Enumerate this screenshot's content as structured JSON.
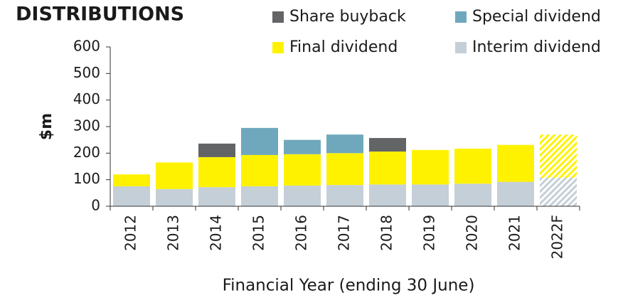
{
  "chart_data": {
    "type": "stacked_bar",
    "title": "DISTRIBUTIONS",
    "y_label": "$m",
    "x_label": "Financial Year (ending 30 June)",
    "categories": [
      "2012",
      "2013",
      "2014",
      "2015",
      "2016",
      "2017",
      "2018",
      "2019",
      "2020",
      "2021",
      "2022F"
    ],
    "series": [
      {
        "name": "Interim dividend",
        "color": "#c5cfd8",
        "values": [
          75,
          65,
          72,
          75,
          78,
          80,
          82,
          82,
          85,
          92,
          107
        ]
      },
      {
        "name": "Final dividend",
        "color": "#fff200",
        "values": [
          45,
          100,
          113,
          118,
          118,
          120,
          124,
          130,
          132,
          139,
          163
        ]
      },
      {
        "name": "Special dividend",
        "color": "#6fa8bd",
        "values": [
          null,
          null,
          null,
          102,
          54,
          70,
          null,
          null,
          null,
          null,
          null
        ]
      },
      {
        "name": "Share buyback",
        "color": "#636466",
        "values": [
          null,
          null,
          51,
          null,
          null,
          null,
          51,
          null,
          null,
          null,
          null
        ]
      }
    ],
    "ylim": [
      0,
      600
    ],
    "yticks": [
      0,
      100,
      200,
      300,
      400,
      500,
      600
    ]
  }
}
